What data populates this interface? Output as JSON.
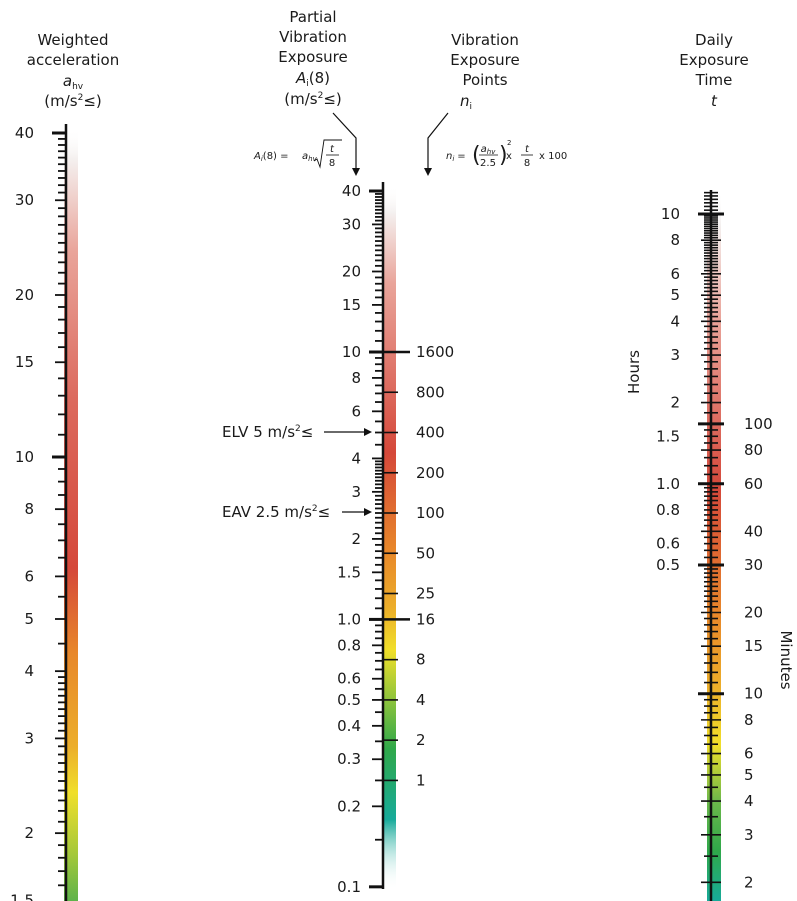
{
  "scales": {
    "a": {
      "header": [
        "Weighted",
        "acceleration"
      ],
      "symbol": "a",
      "symbol_sub": "hv",
      "unit_pre": "(m/s",
      "unit_sup": "2",
      "unit_post": "≤)",
      "labels": [
        "40",
        "30",
        "20",
        "15",
        "10",
        "8",
        "6",
        "5",
        "4",
        "3",
        "2",
        "1.5"
      ]
    },
    "partial": {
      "header": [
        "Partial",
        "Vibration",
        "Exposure"
      ],
      "symbol": "A",
      "symbol_sub": "i",
      "symbol_post": "(8)",
      "unit_pre": "(m/s",
      "unit_sup": "2",
      "unit_post": "≤)",
      "labels": [
        "40",
        "30",
        "20",
        "15",
        "10",
        "8",
        "6",
        "4",
        "3",
        "2",
        "1.5",
        "1.0",
        "0.8",
        "0.6",
        "0.5",
        "0.4",
        "0.3",
        "0.2",
        "0.1"
      ]
    },
    "points": {
      "header": [
        "Vibration",
        "Exposure",
        "Points"
      ],
      "symbol": "n",
      "symbol_sub": "i",
      "labels": [
        "1600",
        "800",
        "400",
        "200",
        "100",
        "50",
        "25",
        "16",
        "8",
        "4",
        "2",
        "1"
      ]
    },
    "time": {
      "header": [
        "Daily",
        "Exposure",
        "Time"
      ],
      "symbol": "t",
      "hours_label": "Hours",
      "minutes_label": "Minutes",
      "hour_labels": [
        "10",
        "8",
        "6",
        "5",
        "4",
        "3",
        "2",
        "1.5",
        "1.0",
        "0.8",
        "0.6",
        "0.5"
      ],
      "minute_labels": [
        "100",
        "80",
        "60",
        "40",
        "30",
        "20",
        "15",
        "10",
        "8",
        "6",
        "5",
        "4",
        "3",
        "2"
      ]
    }
  },
  "formula_a8": {
    "lhs": "A",
    "lhs_sub": "i",
    "lhs_post": "(8) =",
    "a": "a",
    "a_sub": "hv",
    "num": "t",
    "den": "8"
  },
  "formula_n": {
    "lhs": "n",
    "lhs_sub": "i",
    "eq": "=",
    "a": "a",
    "a_sub": "hv",
    "den1": "2.5",
    "sq": "2",
    "times1": "x",
    "num2": "t",
    "den2": "8",
    "tail": "x 100"
  },
  "markers": {
    "elv_pre": "ELV 5 m/s",
    "elv_sup": "2",
    "elv_post": "≤",
    "eav_pre": "EAV 2.5 m/s",
    "eav_sup": "2",
    "eav_post": "≤"
  },
  "colors": {
    "top": "#f4f0ef",
    "pink": "#e9a49a",
    "red": "#d5483a",
    "orange": "#e8882a",
    "yellow": "#f0df2a",
    "green": "#2fa84a",
    "teal": "#17aa9a"
  }
}
